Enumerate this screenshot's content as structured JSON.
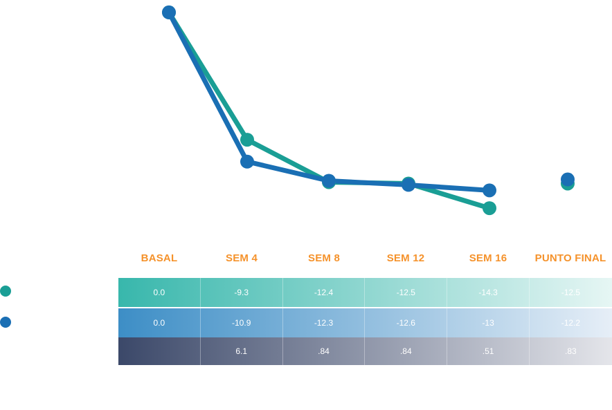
{
  "colors": {
    "teal": "#1a9e95",
    "blue": "#1a6fb4",
    "orange": "#f5922b",
    "dark": "#3b4869",
    "teal_row_start": "#38b7ac",
    "blue_row_start": "#3d8ec6"
  },
  "chart_data": {
    "type": "line",
    "categories": [
      "BASAL",
      "SEM 4",
      "SEM 8",
      "SEM 12",
      "SEM 16",
      "PUNTO FINAL"
    ],
    "series": [
      {
        "values": [
          0.0,
          -9.3,
          -12.4,
          -12.5,
          -14.3,
          -12.5
        ],
        "color": "#1a9e95"
      },
      {
        "values": [
          0.0,
          -10.9,
          -12.3,
          -12.6,
          -13,
          -12.2
        ],
        "color": "#1a6fb4"
      }
    ],
    "connected_points": 5,
    "ylim": [
      -14.8,
      0.4
    ],
    "grid": false
  },
  "table": {
    "headers": [
      "BASAL",
      "SEM 4",
      "SEM 8",
      "SEM 12",
      "SEM 16",
      "PUNTO FINAL"
    ],
    "teal_row": [
      "0.0",
      "-9.3",
      "-12.4",
      "-12.5",
      "-14.3",
      "-12.5"
    ],
    "blue_row": [
      "0.0",
      "-10.9",
      "-12.3",
      "-12.6",
      "-13",
      "-12.2"
    ],
    "pvalue_row": [
      "",
      "6.1",
      ".84",
      ".84",
      ".51",
      ".83"
    ]
  }
}
